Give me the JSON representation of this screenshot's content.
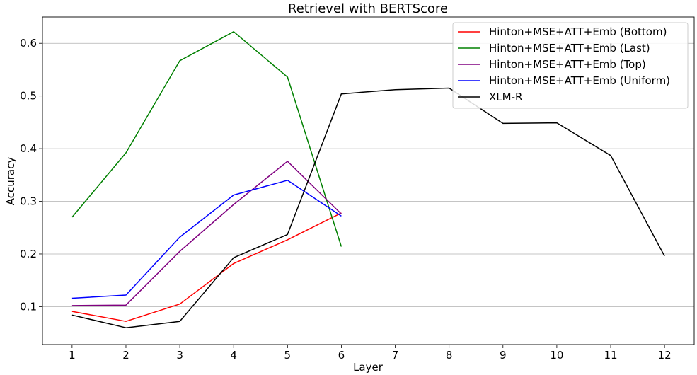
{
  "chart_data": {
    "type": "line",
    "title": "Retrievel with BERTScore",
    "xlabel": "Layer",
    "ylabel": "Accuracy",
    "x_ticks": [
      "1",
      "2",
      "3",
      "4",
      "5",
      "6",
      "7",
      "8",
      "9",
      "10",
      "11",
      "12"
    ],
    "y_ticks": [
      "0.1",
      "0.2",
      "0.3",
      "0.4",
      "0.5",
      "0.6"
    ],
    "y_tick_values": [
      0.1,
      0.2,
      0.3,
      0.4,
      0.5,
      0.6
    ],
    "xlim": [
      0.45,
      12.55
    ],
    "ylim": [
      0.028,
      0.65
    ],
    "grid": "horizontal",
    "legend_position": "top-right",
    "series": [
      {
        "name": "Hinton+MSE+ATT+Emb (Bottom)",
        "color": "#ff0000",
        "x": [
          1,
          2,
          3,
          4,
          5,
          6
        ],
        "y": [
          0.091,
          0.072,
          0.105,
          0.182,
          0.227,
          0.278
        ]
      },
      {
        "name": "Hinton+MSE+ATT+Emb (Last)",
        "color": "#008000",
        "x": [
          1,
          2,
          3,
          4,
          5,
          6
        ],
        "y": [
          0.27,
          0.392,
          0.567,
          0.622,
          0.536,
          0.214
        ]
      },
      {
        "name": "Hinton+MSE+ATT+Emb (Top)",
        "color": "#800080",
        "x": [
          1,
          2,
          3,
          4,
          5,
          6
        ],
        "y": [
          0.102,
          0.103,
          0.205,
          0.294,
          0.376,
          0.276
        ]
      },
      {
        "name": "Hinton+MSE+ATT+Emb (Uniform)",
        "color": "#0000ff",
        "x": [
          1,
          2,
          3,
          4,
          5,
          6
        ],
        "y": [
          0.116,
          0.122,
          0.232,
          0.312,
          0.34,
          0.272
        ]
      },
      {
        "name": "XLM-R",
        "color": "#000000",
        "x": [
          1,
          2,
          3,
          4,
          5,
          6,
          7,
          8,
          9,
          10,
          11,
          12
        ],
        "y": [
          0.084,
          0.06,
          0.072,
          0.193,
          0.237,
          0.504,
          0.512,
          0.515,
          0.448,
          0.449,
          0.387,
          0.196
        ]
      }
    ]
  }
}
